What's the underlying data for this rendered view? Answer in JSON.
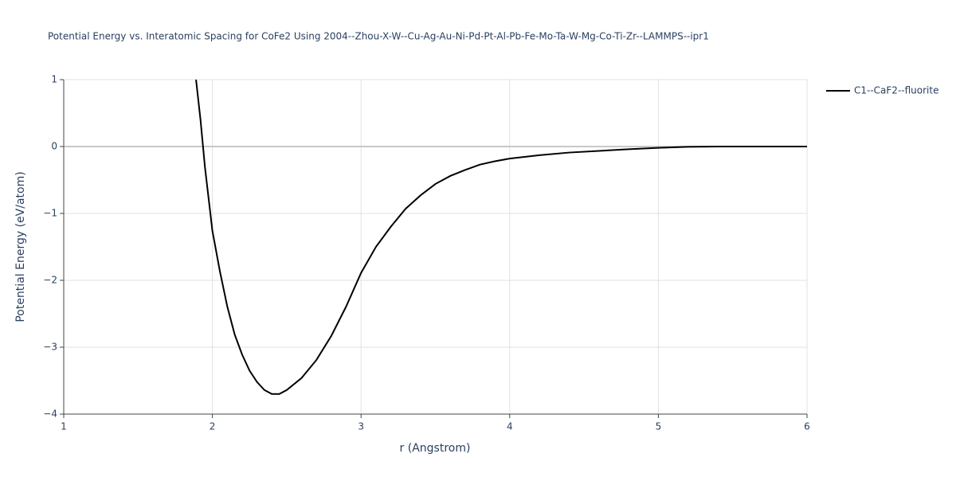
{
  "chart_data": {
    "type": "line",
    "title": "Potential Energy vs. Interatomic Spacing for CoFe2 Using 2004--Zhou-X-W--Cu-Ag-Au-Ni-Pd-Pt-Al-Pb-Fe-Mo-Ta-W-Mg-Co-Ti-Zr--LAMMPS--ipr1",
    "x_label": "r (Angstrom)",
    "y_label": "Potential Energy (eV/atom)",
    "xlim": [
      1,
      6
    ],
    "ylim": [
      -4,
      1
    ],
    "xticks": [
      1,
      2,
      3,
      4,
      5,
      6
    ],
    "yticks": [
      {
        "value": -4,
        "label": "−4"
      },
      {
        "value": -3,
        "label": "−3"
      },
      {
        "value": -2,
        "label": "−2"
      },
      {
        "value": -1,
        "label": "−1"
      },
      0,
      1
    ],
    "grid": true,
    "legend": "top-right",
    "x": [
      1.89,
      1.92,
      1.95,
      2.0,
      2.05,
      2.1,
      2.15,
      2.2,
      2.25,
      2.3,
      2.35,
      2.4,
      2.45,
      2.5,
      2.6,
      2.7,
      2.8,
      2.9,
      3.0,
      3.1,
      3.2,
      3.3,
      3.4,
      3.5,
      3.6,
      3.7,
      3.8,
      3.9,
      4.0,
      4.2,
      4.4,
      4.6,
      4.8,
      5.0,
      5.2,
      5.4,
      6.0
    ],
    "series": [
      {
        "name": "C1--CaF2--fluorite",
        "color": "#000000",
        "values": [
          1,
          0.4,
          -0.31,
          -1.26,
          -1.86,
          -2.39,
          -2.81,
          -3.11,
          -3.35,
          -3.52,
          -3.64,
          -3.7,
          -3.7,
          -3.64,
          -3.46,
          -3.19,
          -2.83,
          -2.39,
          -1.89,
          -1.5,
          -1.2,
          -0.93,
          -0.73,
          -0.56,
          -0.44,
          -0.35,
          -0.27,
          -0.22,
          -0.18,
          -0.13,
          -0.09,
          -0.065,
          -0.04,
          -0.02,
          -0.005,
          0,
          0
        ]
      }
    ]
  }
}
